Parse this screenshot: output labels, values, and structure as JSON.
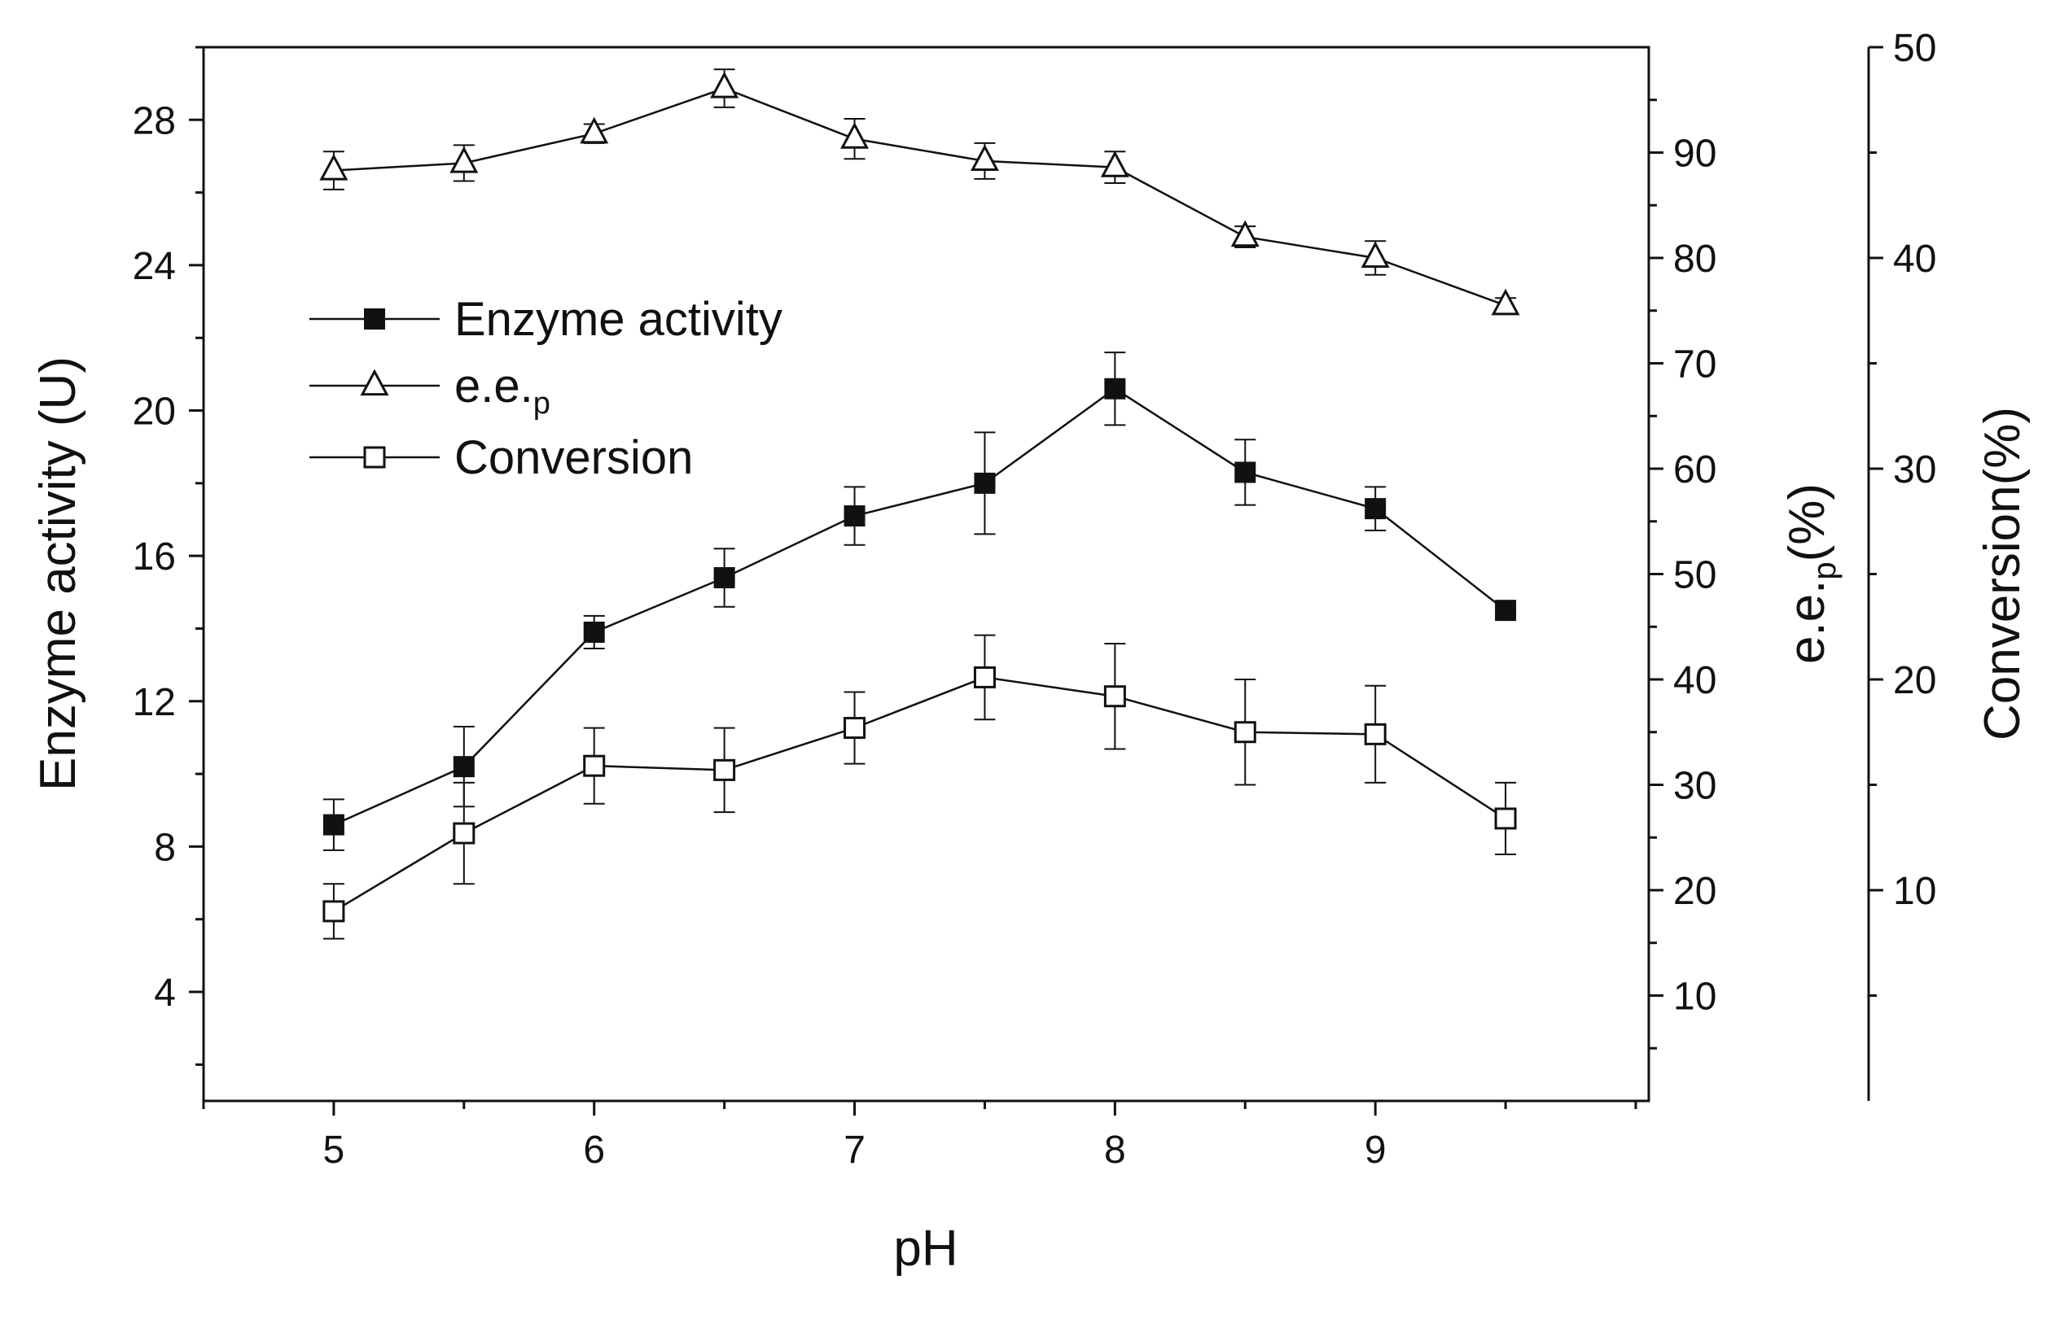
{
  "chart_data": {
    "type": "line",
    "title": "",
    "xlabel": "pH",
    "x": [
      5,
      5.5,
      6,
      6.5,
      7,
      7.5,
      8,
      8.5,
      9,
      9.5
    ],
    "xlim": [
      4.5,
      10.05
    ],
    "xticks": [
      "5",
      "6",
      "7",
      "8",
      "9"
    ],
    "axes": [
      {
        "id": "left",
        "label_main": "Enzyme activity (U)",
        "range": [
          1,
          30
        ],
        "ticks": [
          "4",
          "8",
          "12",
          "16",
          "20",
          "24",
          "28"
        ]
      },
      {
        "id": "ee",
        "label_main": "e.e.",
        "label_sub": "p",
        "label_tail": "(%)",
        "range": [
          0,
          100
        ],
        "ticks": [
          "10",
          "20",
          "30",
          "40",
          "50",
          "60",
          "70",
          "80",
          "90"
        ]
      },
      {
        "id": "conv",
        "label_main": "Conversion(%)",
        "range": [
          0,
          50
        ],
        "ticks": [
          "10",
          "20",
          "30",
          "40",
          "50"
        ]
      }
    ],
    "series": [
      {
        "name": "Enzyme activity",
        "legend_main": "Enzyme activity",
        "legend_sub": "",
        "axis": "left",
        "marker": "filled-square",
        "values": [
          8.6,
          10.2,
          13.9,
          15.4,
          17.1,
          18.0,
          20.6,
          18.3,
          17.3,
          14.5
        ],
        "errors": [
          0.7,
          1.1,
          0.45,
          0.8,
          0.8,
          1.4,
          1.0,
          0.9,
          0.6,
          0.0
        ]
      },
      {
        "name": "e.e.p",
        "legend_main": "e.e.",
        "legend_sub": "p",
        "axis": "ee",
        "marker": "open-triangle",
        "values": [
          88.3,
          89.0,
          91.8,
          96.1,
          91.3,
          89.2,
          88.6,
          82.0,
          80.0,
          75.5
        ],
        "errors": [
          1.8,
          1.7,
          0.9,
          1.8,
          1.9,
          1.7,
          1.5,
          1.0,
          1.6,
          0.7
        ]
      },
      {
        "name": "Conversion",
        "legend_main": "Conversion",
        "legend_sub": "",
        "axis": "conv",
        "marker": "open-square",
        "values": [
          9.0,
          12.7,
          15.9,
          15.7,
          17.7,
          20.1,
          19.2,
          17.5,
          17.4,
          13.4
        ],
        "errors": [
          1.3,
          2.4,
          1.8,
          2.0,
          1.7,
          2.0,
          2.5,
          2.5,
          2.3,
          1.7
        ]
      }
    ]
  }
}
